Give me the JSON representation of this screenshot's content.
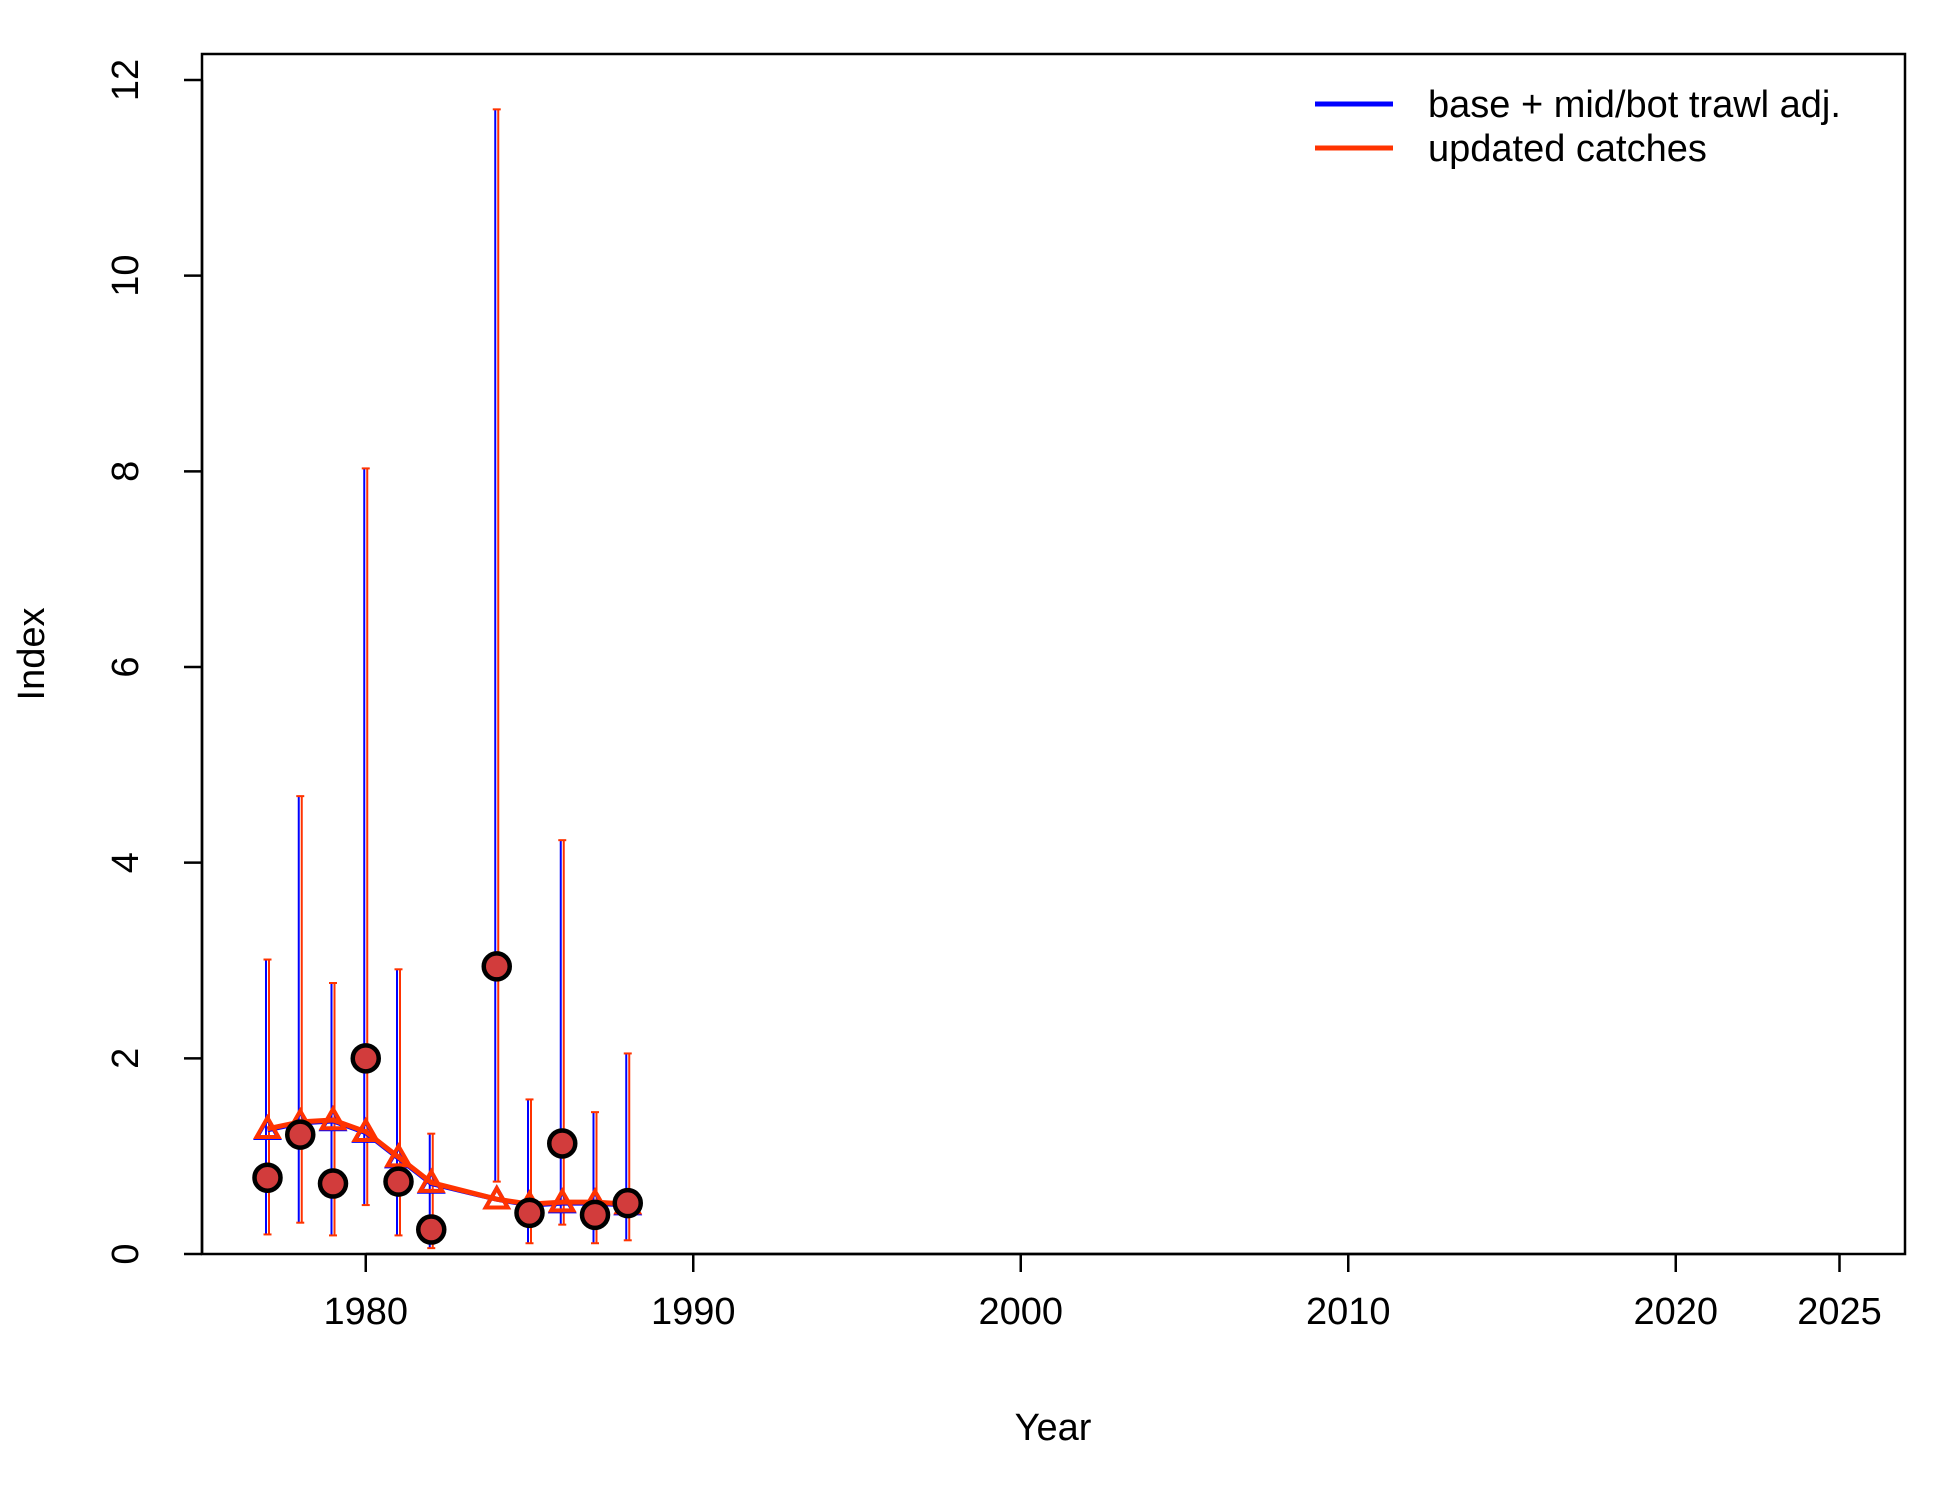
{
  "chart_data": {
    "type": "line",
    "xlabel": "Year",
    "ylabel": "Index",
    "xlim": [
      1975,
      2027
    ],
    "ylim": [
      0,
      12
    ],
    "x_ticks": [
      1980,
      1990,
      2000,
      2010,
      2020,
      2025
    ],
    "x_tick_labels": [
      "1980",
      "1990",
      "2000",
      "2010",
      "2020",
      "2025"
    ],
    "y_ticks": [
      0,
      2,
      4,
      6,
      8,
      10,
      12
    ],
    "y_tick_labels": [
      "0",
      "2",
      "4",
      "6",
      "8",
      "10",
      "12"
    ],
    "legend_position": "top-right",
    "observed": {
      "x": [
        1977,
        1978,
        1979,
        1980,
        1981,
        1982,
        1984,
        1985,
        1986,
        1987,
        1988
      ],
      "y": [
        0.78,
        1.22,
        0.72,
        2.0,
        0.74,
        0.25,
        2.94,
        0.42,
        1.13,
        0.4,
        0.52
      ],
      "lower": [
        0.2,
        0.32,
        0.19,
        0.5,
        0.19,
        0.06,
        0.74,
        0.11,
        0.3,
        0.11,
        0.14
      ],
      "upper": [
        3.01,
        4.68,
        2.77,
        8.03,
        2.91,
        1.23,
        11.7,
        1.58,
        4.23,
        1.45,
        2.05
      ]
    },
    "series": [
      {
        "name": "base + mid/bot trawl adj.",
        "color": "#0000ff",
        "x": [
          1977,
          1978,
          1979,
          1980,
          1981,
          1982,
          1984,
          1985,
          1986,
          1987,
          1988
        ],
        "y": [
          1.27,
          1.34,
          1.36,
          1.24,
          0.98,
          0.72,
          0.56,
          0.5,
          0.52,
          0.52,
          0.5
        ]
      },
      {
        "name": "updated catches",
        "color": "#ff3300",
        "x": [
          1977,
          1978,
          1979,
          1980,
          1981,
          1982,
          1984,
          1985,
          1986,
          1987,
          1988
        ],
        "y": [
          1.28,
          1.35,
          1.37,
          1.25,
          0.99,
          0.73,
          0.56,
          0.51,
          0.53,
          0.53,
          0.51
        ]
      }
    ],
    "point_fill": "#d23c3c",
    "point_stroke": "#000000"
  }
}
